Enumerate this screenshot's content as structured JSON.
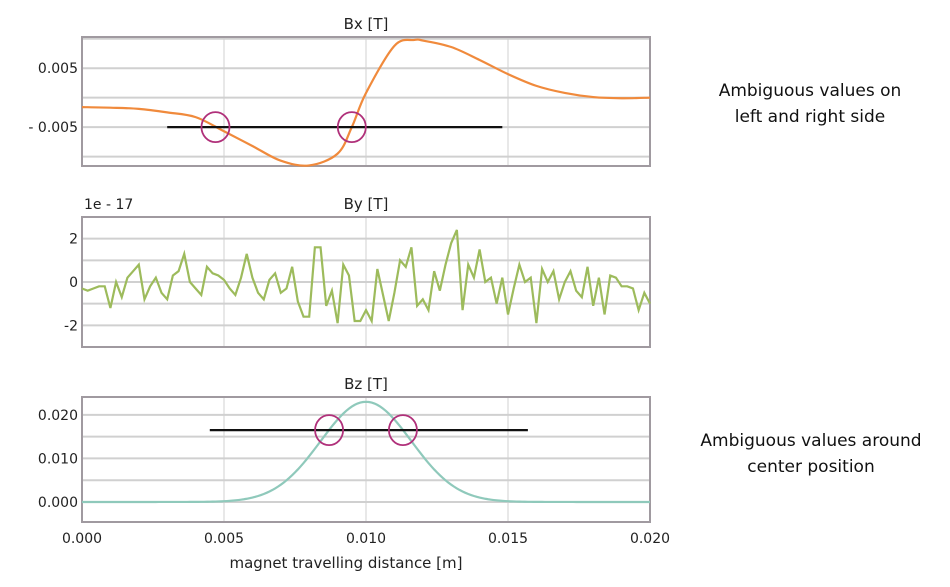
{
  "chart_data": [
    {
      "type": "line",
      "title": "Bx [T]",
      "ylim": [
        -0.0116,
        0.0103
      ],
      "xlim": [
        0,
        0.02
      ],
      "yticks": [
        "0.005",
        "- 0.005"
      ],
      "ytick_values": [
        0.005,
        -0.005
      ],
      "grid": true,
      "color": "#f08a3c",
      "x": [
        0,
        0.001,
        0.002,
        0.003,
        0.004,
        0.005,
        0.006,
        0.007,
        0.008,
        0.009,
        0.0095,
        0.01,
        0.011,
        0.0117,
        0.012,
        0.013,
        0.014,
        0.015,
        0.016,
        0.017,
        0.018,
        0.019,
        0.02
      ],
      "y": [
        -0.0016,
        -0.0017,
        -0.0019,
        -0.0025,
        -0.0033,
        -0.0057,
        -0.0082,
        -0.0107,
        -0.0115,
        -0.0095,
        -0.005,
        0.0008,
        0.0088,
        0.0098,
        0.0097,
        0.0086,
        0.0064,
        0.004,
        0.002,
        0.0008,
        0.0001,
        -0.0001,
        0.0
      ],
      "threshold": {
        "y": -0.005,
        "x_from": 0.003,
        "x_to": 0.0148
      },
      "markers_x": [
        0.0047,
        0.0095
      ]
    },
    {
      "type": "line",
      "title": "By [T]",
      "scale_label": "1e - 17",
      "ylim": [
        -3,
        3
      ],
      "xlim": [
        0,
        0.02
      ],
      "yticks": [
        "2",
        "0",
        "-2"
      ],
      "ytick_values": [
        2,
        0,
        -2
      ],
      "grid": true,
      "color": "#9dbb5c",
      "y": [
        -0.3,
        -0.4,
        -0.3,
        -0.2,
        -0.2,
        -1.2,
        0,
        -0.7,
        0.2,
        0.5,
        0.8,
        -0.8,
        -0.2,
        0.2,
        -0.5,
        -0.8,
        0.3,
        0.5,
        1.3,
        0,
        -0.3,
        -0.6,
        0.7,
        0.4,
        0.3,
        0.1,
        -0.3,
        -0.6,
        0.2,
        1.3,
        0.2,
        -0.5,
        -0.8,
        0.1,
        0.4,
        -0.5,
        -0.3,
        0.7,
        -0.9,
        -1.6,
        -1.6,
        1.6,
        1.6,
        -1.1,
        -0.4,
        -1.9,
        0.8,
        0.3,
        -1.8,
        -1.8,
        -1.3,
        -1.8,
        0.6,
        -0.6,
        -1.8,
        -0.5,
        1.0,
        0.7,
        1.6,
        -1.1,
        -0.8,
        -1.3,
        0.5,
        -0.4,
        0.8,
        1.8,
        2.4,
        -1.3,
        0.8,
        0.2,
        1.5,
        0,
        0.2,
        -1.0,
        0.2,
        -1.5,
        -0.3,
        0.8,
        0,
        0.2,
        -1.9,
        0.6,
        0,
        0.5,
        -0.8,
        0,
        0.5,
        -0.4,
        -0.7,
        0.7,
        -1.1,
        0.2,
        -1.5,
        0.3,
        0.2,
        -0.2,
        -0.2,
        -0.3,
        -1.3,
        -0.5,
        -1.0
      ]
    },
    {
      "type": "line",
      "title": "Bz [T]",
      "ylim": [
        -0.0046,
        0.0241
      ],
      "xlim": [
        0,
        0.02
      ],
      "yticks": [
        "0.020",
        "0.010",
        "0.000"
      ],
      "ytick_values": [
        0.02,
        0.01,
        0.0
      ],
      "grid": true,
      "color": "#8fc9bb",
      "peak": {
        "x": 0.01,
        "y": 0.023,
        "sigma": 0.0016
      },
      "threshold": {
        "y": 0.0165,
        "x_from": 0.0045,
        "x_to": 0.0157
      },
      "markers_x": [
        0.0087,
        0.0113
      ],
      "xticks": [
        "0.000",
        "0.005",
        "0.010",
        "0.015",
        "0.020"
      ],
      "xtick_values": [
        0,
        0.005,
        0.01,
        0.015,
        0.02
      ],
      "xlabel": "magnet travelling distance [m]"
    }
  ],
  "annotations": {
    "top": [
      "Ambiguous values on",
      "left and right side"
    ],
    "bottom": [
      "Ambiguous values around",
      "center position"
    ]
  },
  "colors": {
    "marker": "#b0307a",
    "threshold": "#111111",
    "grid": "#d0d0d0",
    "frame": "#a09aa0"
  }
}
